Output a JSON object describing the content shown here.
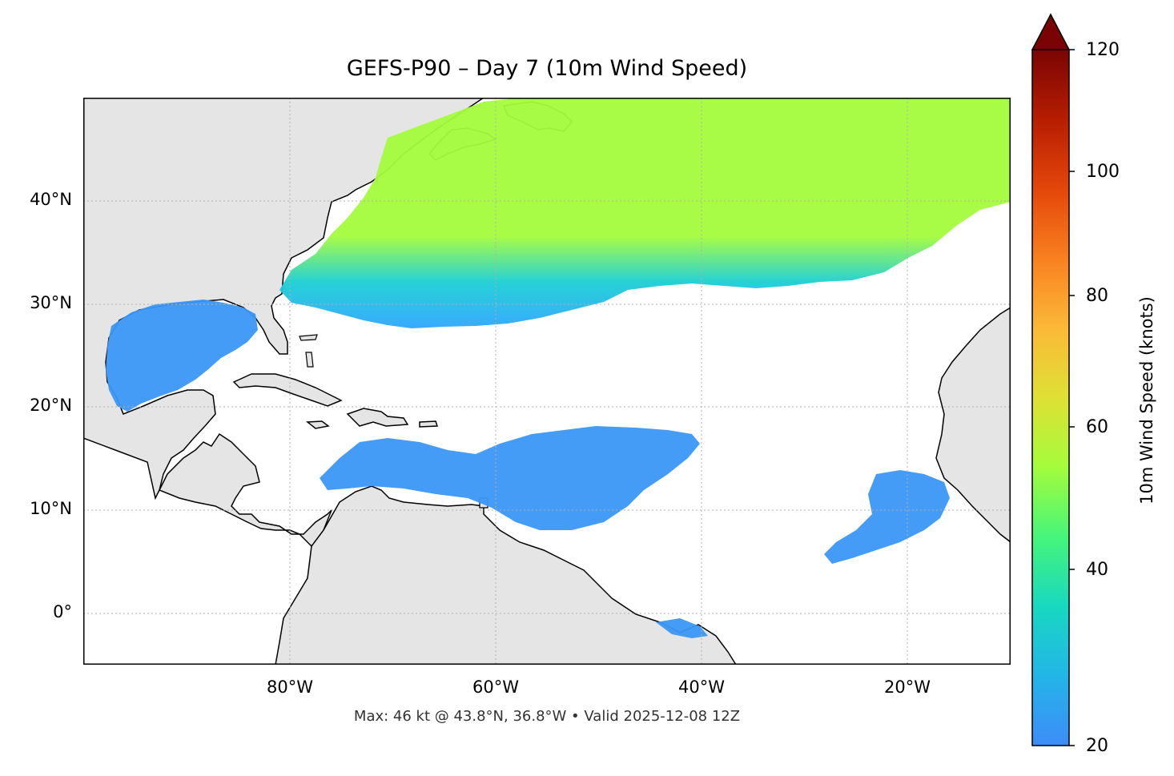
{
  "title": "GEFS-P90 – Day 7 (10m Wind Speed)",
  "footer": "Max: 46 kt @ 43.8°N, 36.8°W • Valid 2025-12-08 12Z",
  "map": {
    "lat_ticks": [
      "40°N",
      "30°N",
      "20°N",
      "10°N",
      "0°"
    ],
    "lon_ticks": [
      "80°W",
      "60°W",
      "40°W",
      "20°W"
    ],
    "extent": {
      "lon_min": -100,
      "lon_max": -10,
      "lat_min": -5,
      "lat_max": 50
    },
    "land_color": "#e5e5e5",
    "max_marker": {
      "lat": 43.8,
      "lon": -36.8,
      "value_kt": 46
    }
  },
  "colorbar": {
    "label": "10m Wind Speed (knots)",
    "ticks": [
      "120",
      "100",
      "80",
      "60",
      "40",
      "20"
    ],
    "range": [
      20,
      120
    ],
    "extend": "max",
    "colormap": "turbo"
  }
}
